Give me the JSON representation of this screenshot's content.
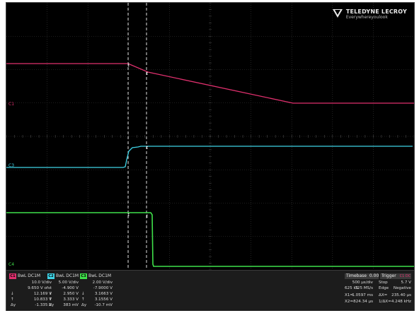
{
  "brand": {
    "name": "TELEDYNE LECROY",
    "tagline": "Everywhereyoulook"
  },
  "trace_labels": {
    "c1": "C1",
    "c3": "C3",
    "c4": "C4"
  },
  "colors": {
    "background": "#000000",
    "grid": "#3a3a3a",
    "c1": "#e0306e",
    "c2": "#3fd3e6",
    "c3": "#3fe04a",
    "cursor": "#dddddd"
  },
  "channels": [
    {
      "tag": "C1",
      "color": "#e0306e",
      "title": "BwL DC1M",
      "values": [
        "10.0 V/div",
        "9.650 V ofst",
        "12.169 V",
        "10.833 V",
        "-1.335 V"
      ],
      "labels": [
        "",
        "",
        "↓",
        "↑",
        "Δy"
      ]
    },
    {
      "tag": "C2",
      "color": "#3fd3e6",
      "title": "BwL DC1M",
      "values": [
        "5.00 V/div",
        "-4.900 V",
        "2.950 V",
        "3.333 V",
        "383 mV"
      ],
      "labels": [
        "",
        "",
        "↓",
        "↑",
        "Δy"
      ]
    },
    {
      "tag": "C3",
      "color": "#3fe04a",
      "title": "BwL DC1M",
      "values": [
        "2.00 V/div",
        "-7.9000 V",
        "3.1663 V",
        "3.1556 V",
        "-10.7 mV"
      ],
      "labels": [
        "",
        "",
        "↓",
        "↑",
        "Δy"
      ]
    }
  ],
  "timebase": {
    "title": "Timebase",
    "delay": "0.00 ms",
    "trigger_title": "Trigger",
    "trigger_badge": "C1 DC",
    "rows": [
      [
        "",
        "500 µs/div",
        "Stop",
        "5.7 V"
      ],
      [
        "625 kS",
        "125 MS/s",
        "Edge",
        "Negative"
      ],
      [
        "X1=",
        "-1.0597 ms",
        "ΔX=",
        "235.40 µs"
      ],
      [
        "X2=",
        "-824.34 µs",
        "1/ΔX=",
        "4.248 kHz"
      ]
    ]
  }
}
